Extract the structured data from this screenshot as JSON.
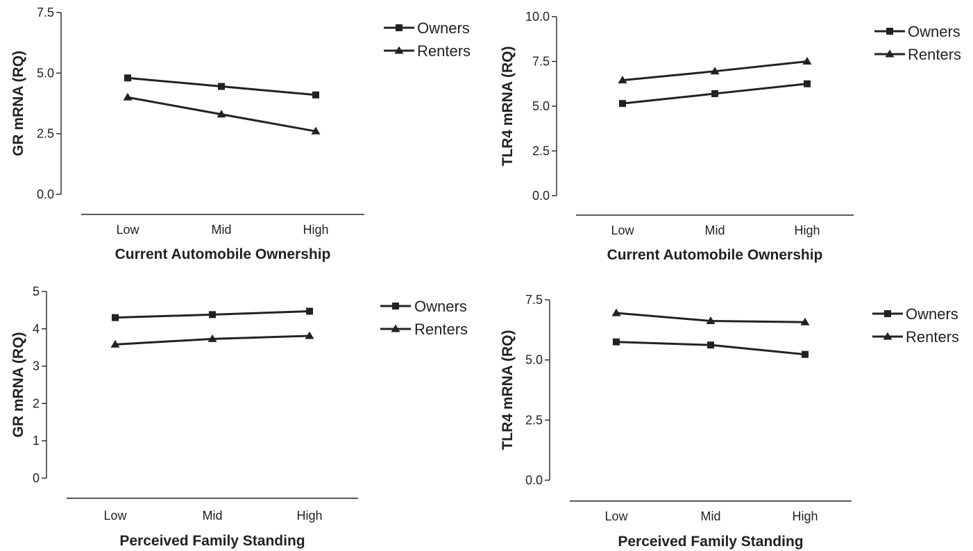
{
  "chart_data": [
    {
      "type": "line",
      "categories": [
        "Low",
        "Mid",
        "High"
      ],
      "series": [
        {
          "name": "Owners",
          "values": [
            4.8,
            4.45,
            4.1
          ],
          "marker": "square"
        },
        {
          "name": "Renters",
          "values": [
            4.0,
            3.3,
            2.6
          ],
          "marker": "triangle"
        }
      ],
      "xlabel": "Current Automobile Ownership",
      "ylabel": "GR mRNA (RQ)",
      "ylim": [
        0,
        7.5
      ],
      "yticks": [
        "0.0",
        "2.5",
        "5.0",
        "7.5"
      ],
      "yticks_values": [
        0,
        2.5,
        5,
        7.5
      ],
      "legend_position": "top-right"
    },
    {
      "type": "line",
      "categories": [
        "Low",
        "Mid",
        "High"
      ],
      "series": [
        {
          "name": "Owners",
          "values": [
            5.15,
            5.7,
            6.25
          ],
          "marker": "square"
        },
        {
          "name": "Renters",
          "values": [
            6.45,
            6.95,
            7.5
          ],
          "marker": "triangle"
        }
      ],
      "xlabel": "Current Automobile Ownership",
      "ylabel": "TLR4 mRNA (RQ)",
      "ylim": [
        0,
        10
      ],
      "yticks": [
        "0.0",
        "2.5",
        "5.0",
        "7.5",
        "10.0"
      ],
      "yticks_values": [
        0,
        2.5,
        5,
        7.5,
        10
      ],
      "legend_position": "top-right"
    },
    {
      "type": "line",
      "categories": [
        "Low",
        "Mid",
        "High"
      ],
      "series": [
        {
          "name": "Owners",
          "values": [
            4.3,
            4.38,
            4.47
          ],
          "marker": "square"
        },
        {
          "name": "Renters",
          "values": [
            3.58,
            3.73,
            3.81
          ],
          "marker": "triangle"
        }
      ],
      "xlabel": "Perceived Family Standing",
      "ylabel": "GR mRNA (RQ)",
      "ylim": [
        0,
        5
      ],
      "yticks": [
        "0",
        "1",
        "2",
        "3",
        "4",
        "5"
      ],
      "yticks_values": [
        0,
        1,
        2,
        3,
        4,
        5
      ],
      "legend_position": "top-right"
    },
    {
      "type": "line",
      "categories": [
        "Low",
        "Mid",
        "High"
      ],
      "series": [
        {
          "name": "Owners",
          "values": [
            5.75,
            5.62,
            5.23
          ],
          "marker": "square"
        },
        {
          "name": "Renters",
          "values": [
            6.95,
            6.62,
            6.57
          ],
          "marker": "triangle"
        }
      ],
      "xlabel": "Perceived Family Standing",
      "ylabel": "TLR4 mRNA (RQ)",
      "ylim": [
        0,
        7.5
      ],
      "yticks": [
        "0.0",
        "2.5",
        "5.0",
        "7.5"
      ],
      "yticks_values": [
        0,
        2.5,
        5,
        7.5
      ],
      "legend_position": "top-right"
    }
  ]
}
